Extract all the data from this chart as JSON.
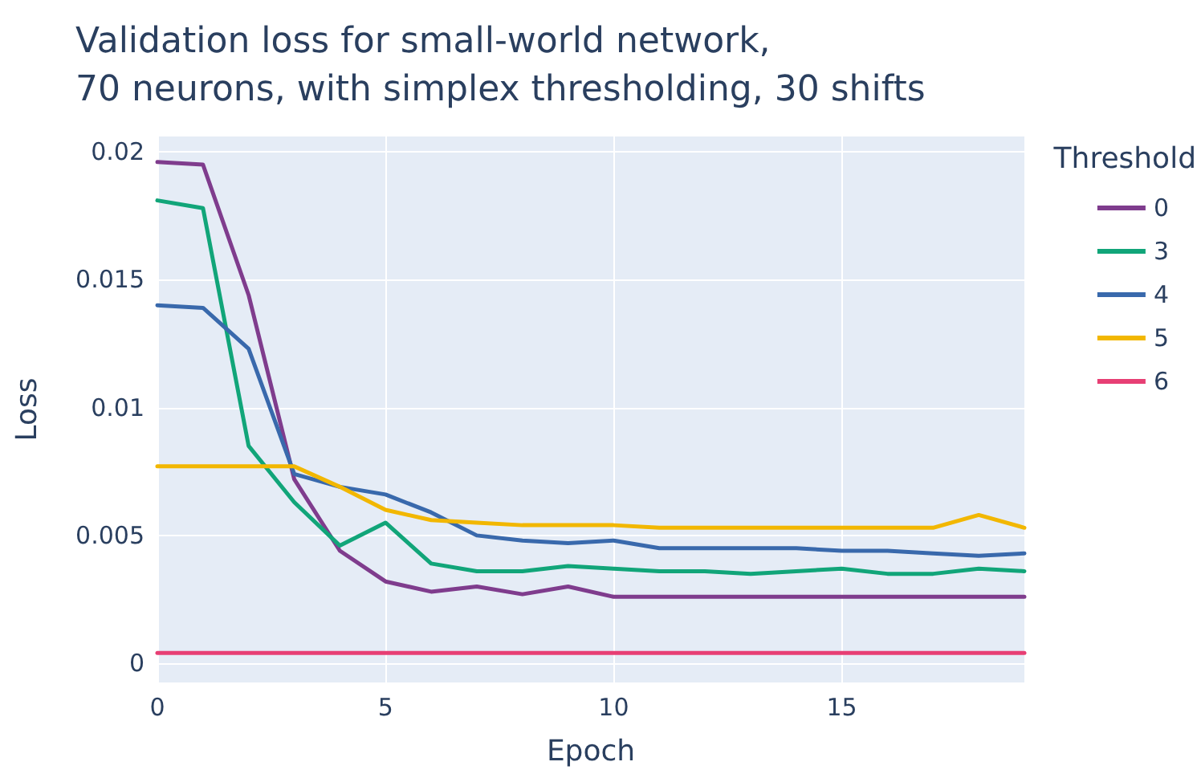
{
  "chart_data": {
    "type": "line",
    "title": "Validation loss for small-world network,\n70 neurons, with simplex thresholding, 30 shifts",
    "xlabel": "Epoch",
    "ylabel": "Loss",
    "legend_title": "Threshold",
    "x": [
      0,
      1,
      2,
      3,
      4,
      5,
      6,
      7,
      8,
      9,
      10,
      11,
      12,
      13,
      14,
      15,
      16,
      17,
      18,
      19
    ],
    "series": [
      {
        "name": "0",
        "color": "#7f3c8d",
        "values": [
          0.0196,
          0.0195,
          0.0144,
          0.0072,
          0.0044,
          0.0032,
          0.0028,
          0.003,
          0.0027,
          0.003,
          0.0026,
          0.0026,
          0.0026,
          0.0026,
          0.0026,
          0.0026,
          0.0026,
          0.0026,
          0.0026,
          0.0026
        ]
      },
      {
        "name": "3",
        "color": "#11a579",
        "values": [
          0.0181,
          0.0178,
          0.0085,
          0.0063,
          0.0046,
          0.0055,
          0.0039,
          0.0036,
          0.0036,
          0.0038,
          0.0037,
          0.0036,
          0.0036,
          0.0035,
          0.0036,
          0.0037,
          0.0035,
          0.0035,
          0.0037,
          0.0036
        ]
      },
      {
        "name": "4",
        "color": "#3969ac",
        "values": [
          0.014,
          0.0139,
          0.0123,
          0.0074,
          0.0069,
          0.0066,
          0.0059,
          0.005,
          0.0048,
          0.0047,
          0.0048,
          0.0045,
          0.0045,
          0.0045,
          0.0045,
          0.0044,
          0.0044,
          0.0043,
          0.0042,
          0.0043
        ]
      },
      {
        "name": "5",
        "color": "#f2b701",
        "values": [
          0.0077,
          0.0077,
          0.0077,
          0.0077,
          0.0069,
          0.006,
          0.0056,
          0.0055,
          0.0054,
          0.0054,
          0.0054,
          0.0053,
          0.0053,
          0.0053,
          0.0053,
          0.0053,
          0.0053,
          0.0053,
          0.0058,
          0.0053
        ]
      },
      {
        "name": "6",
        "color": "#e73f74",
        "values": [
          0.0004,
          0.0004,
          0.0004,
          0.0004,
          0.0004,
          0.0004,
          0.0004,
          0.0004,
          0.0004,
          0.0004,
          0.0004,
          0.0004,
          0.0004,
          0.0004,
          0.0004,
          0.0004,
          0.0004,
          0.0004,
          0.0004,
          0.0004
        ]
      }
    ],
    "xlim": [
      0,
      19
    ],
    "xticks": [
      0,
      5,
      10,
      15
    ],
    "ylim": [
      -0.00075,
      0.0206
    ],
    "yticks": [
      0,
      0.005,
      0.01,
      0.015,
      0.02
    ],
    "grid": true,
    "legend": "right",
    "marker": "none",
    "line_style": "solid"
  }
}
